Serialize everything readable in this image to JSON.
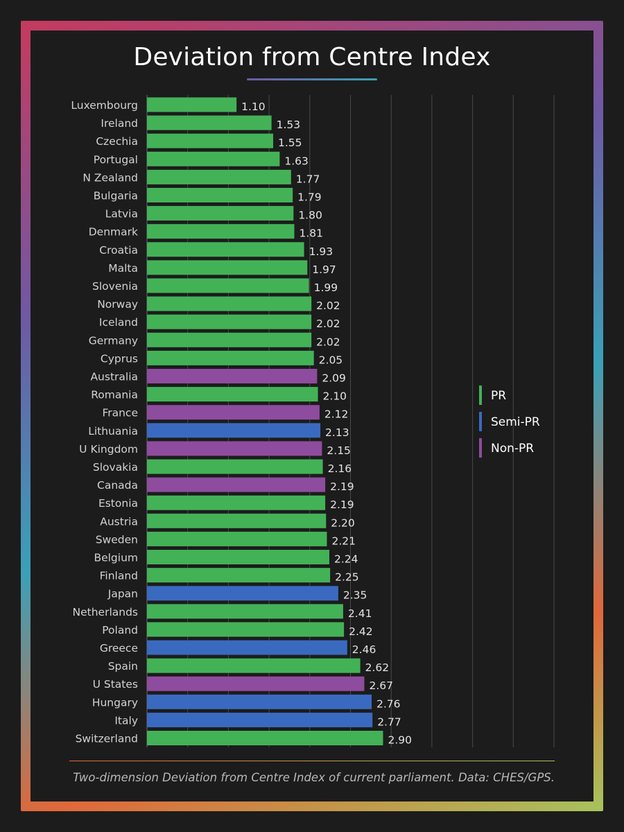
{
  "title": "Deviation from Centre Index",
  "caption": "Two-dimension Deviation from Centre Index of current parliament. Data: CHES/GPS.",
  "colors": {
    "PR": "#43b257",
    "Semi-PR": "#3a6ac0",
    "Non-PR": "#8e4c9e",
    "frame_gradient": [
      "#c63a5e",
      "#6e59a5",
      "#3aa0b8",
      "#e0683a",
      "#a6c45c"
    ]
  },
  "legend": [
    {
      "key": "PR",
      "label": "PR"
    },
    {
      "key": "Semi-PR",
      "label": "Semi-PR"
    },
    {
      "key": "Non-PR",
      "label": "Non-PR"
    }
  ],
  "chart_data": {
    "type": "bar",
    "orientation": "horizontal",
    "title": "Deviation from Centre Index",
    "xlim": [
      0,
      5
    ],
    "grid": "vertical",
    "legend_position": "right",
    "categories": [
      "Luxembourg",
      "Ireland",
      "Czechia",
      "Portugal",
      "N Zealand",
      "Bulgaria",
      "Latvia",
      "Denmark",
      "Croatia",
      "Malta",
      "Slovenia",
      "Norway",
      "Iceland",
      "Germany",
      "Cyprus",
      "Australia",
      "Romania",
      "France",
      "Lithuania",
      "U Kingdom",
      "Slovakia",
      "Canada",
      "Estonia",
      "Austria",
      "Sweden",
      "Belgium",
      "Finland",
      "Japan",
      "Netherlands",
      "Poland",
      "Greece",
      "Spain",
      "U States",
      "Hungary",
      "Italy",
      "Switzerland"
    ],
    "values": [
      1.1,
      1.53,
      1.55,
      1.63,
      1.77,
      1.79,
      1.8,
      1.81,
      1.93,
      1.97,
      1.99,
      2.02,
      2.02,
      2.02,
      2.05,
      2.09,
      2.1,
      2.12,
      2.13,
      2.15,
      2.16,
      2.19,
      2.19,
      2.2,
      2.21,
      2.24,
      2.25,
      2.35,
      2.41,
      2.42,
      2.46,
      2.62,
      2.67,
      2.76,
      2.77,
      2.9
    ],
    "value_labels": [
      "1.10",
      "1.53",
      "1.55",
      "1.63",
      "1.77",
      "1.79",
      "1.80",
      "1.81",
      "1.93",
      "1.97",
      "1.99",
      "2.02",
      "2.02",
      "2.02",
      "2.05",
      "2.09",
      "2.10",
      "2.12",
      "2.13",
      "2.15",
      "2.16",
      "2.19",
      "2.19",
      "2.20",
      "2.21",
      "2.24",
      "2.25",
      "2.35",
      "2.41",
      "2.42",
      "2.46",
      "2.62",
      "2.67",
      "2.76",
      "2.77",
      "2.90"
    ],
    "system": [
      "PR",
      "PR",
      "PR",
      "PR",
      "PR",
      "PR",
      "PR",
      "PR",
      "PR",
      "PR",
      "PR",
      "PR",
      "PR",
      "PR",
      "PR",
      "Non-PR",
      "PR",
      "Non-PR",
      "Semi-PR",
      "Non-PR",
      "PR",
      "Non-PR",
      "PR",
      "PR",
      "PR",
      "PR",
      "PR",
      "Semi-PR",
      "PR",
      "PR",
      "Semi-PR",
      "PR",
      "Non-PR",
      "Semi-PR",
      "Semi-PR",
      "PR"
    ]
  }
}
